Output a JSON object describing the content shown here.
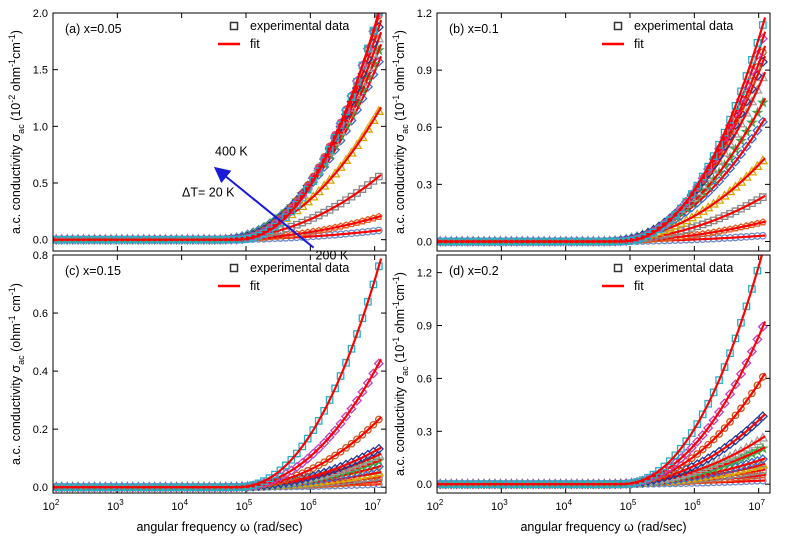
{
  "figure": {
    "x_axis_label": "angular frequency ω (rad/sec)",
    "x_ticks": [
      "10",
      "10",
      "10",
      "10",
      "10",
      "10"
    ],
    "x_tick_exponents": [
      "2",
      "3",
      "4",
      "5",
      "6",
      "7"
    ],
    "legend": {
      "data": "experimental data",
      "fit": "fit"
    },
    "fit_color": "#ff0000",
    "temperature_range": "200 K – 400 K",
    "series_colors": [
      "#6e8cc7",
      "#e05a1a",
      "#888888",
      "#d8a800",
      "#3a6ad8",
      "#3aa84a",
      "#a0a0a0",
      "#1a3a9a",
      "#c85a1a",
      "#c040c0",
      "#22b2c8",
      "#333333"
    ]
  },
  "chart_data": [
    {
      "type": "scatter",
      "title": "(a) x=0.05",
      "ylabel": "a.c. conductivity σ",
      "ylabel_sub": "ac",
      "ylabel_unit": "(10",
      "ylabel_unit_exp": "-2",
      "ylabel_unit_tail": "ohm",
      "ylabel_unit_tail_exp": "-1",
      "ylabel_unit_tail2": "cm",
      "ylabel_unit_tail2_exp": "-1",
      "ylabel_close": ")",
      "x_scale": "log",
      "xlim": [
        100,
        15000000
      ],
      "ylim": [
        -0.1,
        2.0
      ],
      "y_ticks": [
        "0.0",
        "0.5",
        "1.0",
        "1.5",
        "2.0"
      ],
      "y_tick_values": [
        0,
        0.5,
        1.0,
        1.5,
        2.0
      ],
      "series_end_values": [
        0.08,
        0.2,
        0.55,
        1.12,
        1.55,
        1.65,
        1.75,
        1.85,
        1.95,
        1.97,
        1.98
      ],
      "annotations": {
        "top": "400 K",
        "step": "ΔT= 20 K",
        "bottom": "200 K"
      },
      "legend_position": "top-right"
    },
    {
      "type": "scatter",
      "title": "(b) x=0.1",
      "ylabel": "a.c. conductivity σ",
      "ylabel_sub": "ac",
      "ylabel_unit": "(10",
      "ylabel_unit_exp": "-1",
      "ylabel_unit_tail": "ohm",
      "ylabel_unit_tail_exp": "-1",
      "ylabel_unit_tail2": "cm",
      "ylabel_unit_tail2_exp": "-1",
      "ylabel_close": ")",
      "x_scale": "log",
      "xlim": [
        100,
        15000000
      ],
      "ylim": [
        -0.05,
        1.2
      ],
      "y_ticks": [
        "0.0",
        "0.3",
        "0.6",
        "0.9",
        "1.2"
      ],
      "y_tick_values": [
        0,
        0.3,
        0.6,
        0.9,
        1.2
      ],
      "series_end_values": [
        0.03,
        0.1,
        0.23,
        0.42,
        0.62,
        0.72,
        0.85,
        0.93,
        0.98,
        1.05,
        1.12
      ],
      "legend_position": "top-right"
    },
    {
      "type": "scatter",
      "title": "(c) x=0.15",
      "ylabel": "a.c. conductivity σ",
      "ylabel_sub": "ac",
      "ylabel_unit": "(ohm",
      "ylabel_unit_exp": "-1",
      "ylabel_unit_tail": "cm",
      "ylabel_unit_tail_exp": "-1",
      "ylabel_unit_tail2": "",
      "ylabel_unit_tail2_exp": "",
      "ylabel_close": ")",
      "x_scale": "log",
      "xlim": [
        100,
        15000000
      ],
      "ylim": [
        -0.02,
        0.8
      ],
      "y_ticks": [
        "0.0",
        "0.2",
        "0.4",
        "0.6",
        "0.8"
      ],
      "y_tick_values": [
        0,
        0.2,
        0.4,
        0.6,
        0.8
      ],
      "series_end_values": [
        0.01,
        0.02,
        0.035,
        0.05,
        0.07,
        0.09,
        0.11,
        0.13,
        0.23,
        0.42,
        0.75
      ],
      "legend_position": "top-right"
    },
    {
      "type": "scatter",
      "title": "(d) x=0.2",
      "ylabel": "a.c. conductivity σ",
      "ylabel_sub": "ac",
      "ylabel_unit": "(10",
      "ylabel_unit_exp": "-1",
      "ylabel_unit_tail": "ohm",
      "ylabel_unit_tail_exp": "-1",
      "ylabel_unit_tail2": "cm",
      "ylabel_unit_tail2_exp": "-1",
      "ylabel_close": ")",
      "x_scale": "log",
      "xlim": [
        100,
        15000000
      ],
      "ylim": [
        -0.05,
        1.3
      ],
      "y_ticks": [
        "0.0",
        "0.3",
        "0.6",
        "0.9",
        "1.2"
      ],
      "y_tick_values": [
        0,
        0.3,
        0.6,
        0.9,
        1.2
      ],
      "series_end_values": [
        0.02,
        0.05,
        0.08,
        0.11,
        0.14,
        0.2,
        0.26,
        0.38,
        0.6,
        0.88,
        1.3
      ],
      "legend_position": "top-right"
    }
  ]
}
